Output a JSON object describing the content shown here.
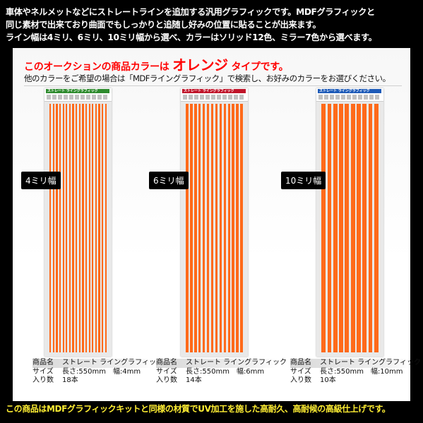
{
  "header": {
    "lines": [
      "車体やネルメットなどにストレートラインを追加する汎用グラフィックです。MDFグラフィックと",
      "同じ素材で出来ており曲面でもしっかりと追随し好みの位置に貼ることが出来ます。",
      "ライン幅は4ミリ、6ミリ、10ミリ幅から選べ、カラーはソリッド12色、ミラー7色から選べます。"
    ]
  },
  "color_notice": {
    "prefix": "このオークションの商品カラーは",
    "color": "オレンジ",
    "suffix": "タイプです。"
  },
  "sub_notice": "他のカラーをご希望の場合は「MDFライングラフィック」で検索し、お好みのカラーをお選びください。",
  "products": [
    {
      "label": "4ミリ幅",
      "card_title": "ストレート ライングラフィック",
      "card_color": "#2e8b2e",
      "stripe_count": 18,
      "spec": {
        "name_key": "商品名",
        "name_val": "ストレート ライングラフィック",
        "size_key": "サイズ",
        "size_val": "長さ:550mm　幅:4mm",
        "qty_key": "入り数",
        "qty_val": "18本"
      }
    },
    {
      "label": "6ミリ幅",
      "card_title": "ストレート ライングラフィック",
      "card_color": "#c0152a",
      "stripe_count": 14,
      "spec": {
        "name_key": "商品名",
        "name_val": "ストレート ライングラフィック",
        "size_key": "サイズ",
        "size_val": "長さ:550mm　幅:6mm",
        "qty_key": "入り数",
        "qty_val": "14本"
      }
    },
    {
      "label": "10ミリ幅",
      "card_title": "ストレート ライングラフィック",
      "card_color": "#1e5bb8",
      "stripe_count": 10,
      "spec": {
        "name_key": "商品名",
        "name_val": "ストレート ライングラフィック",
        "size_key": "サイズ",
        "size_val": "長さ:550mm　幅:10mm",
        "qty_key": "入り数",
        "qty_val": "10本"
      }
    }
  ],
  "footer": "この商品はMDFグラフィックキットと同様の材質でUV加工を施した高耐久、高耐候の高級仕上げです。",
  "colors": {
    "stripe": "#ff6a1a",
    "notice": "#ff0000",
    "footer": "#ffee33"
  }
}
